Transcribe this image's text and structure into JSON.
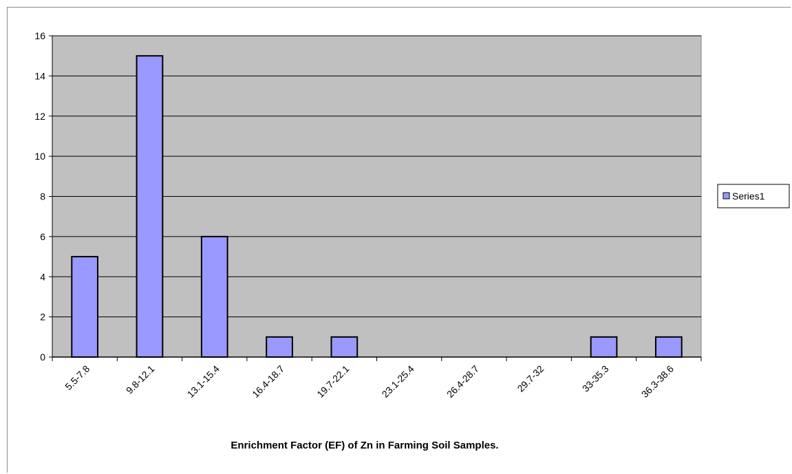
{
  "chart_data": {
    "type": "bar",
    "categories": [
      "5.5-7.8",
      "9.8-12.1",
      "13.1-15.4",
      "16.4-18.7",
      "19.7-22.1",
      "23.1-25.4",
      "26.4-28.7",
      "29.7-32",
      "33-35.3",
      "36.3-38.6"
    ],
    "series": [
      {
        "name": "Series1",
        "values": [
          5,
          15,
          6,
          1,
          1,
          0,
          0,
          0,
          1,
          1
        ]
      }
    ],
    "title": "",
    "xlabel": "Enrichment Factor (EF) of Zn in Farming Soil Samples.",
    "ylabel": "",
    "ylim": [
      0,
      16
    ],
    "yticks": [
      0,
      2,
      4,
      6,
      8,
      10,
      12,
      14,
      16
    ],
    "grid": true,
    "legend": "right",
    "colors": {
      "plot_background": "#c0c0c0",
      "bar_fill": "#9999ff",
      "bar_stroke": "#000000",
      "gridline": "#000000"
    }
  }
}
